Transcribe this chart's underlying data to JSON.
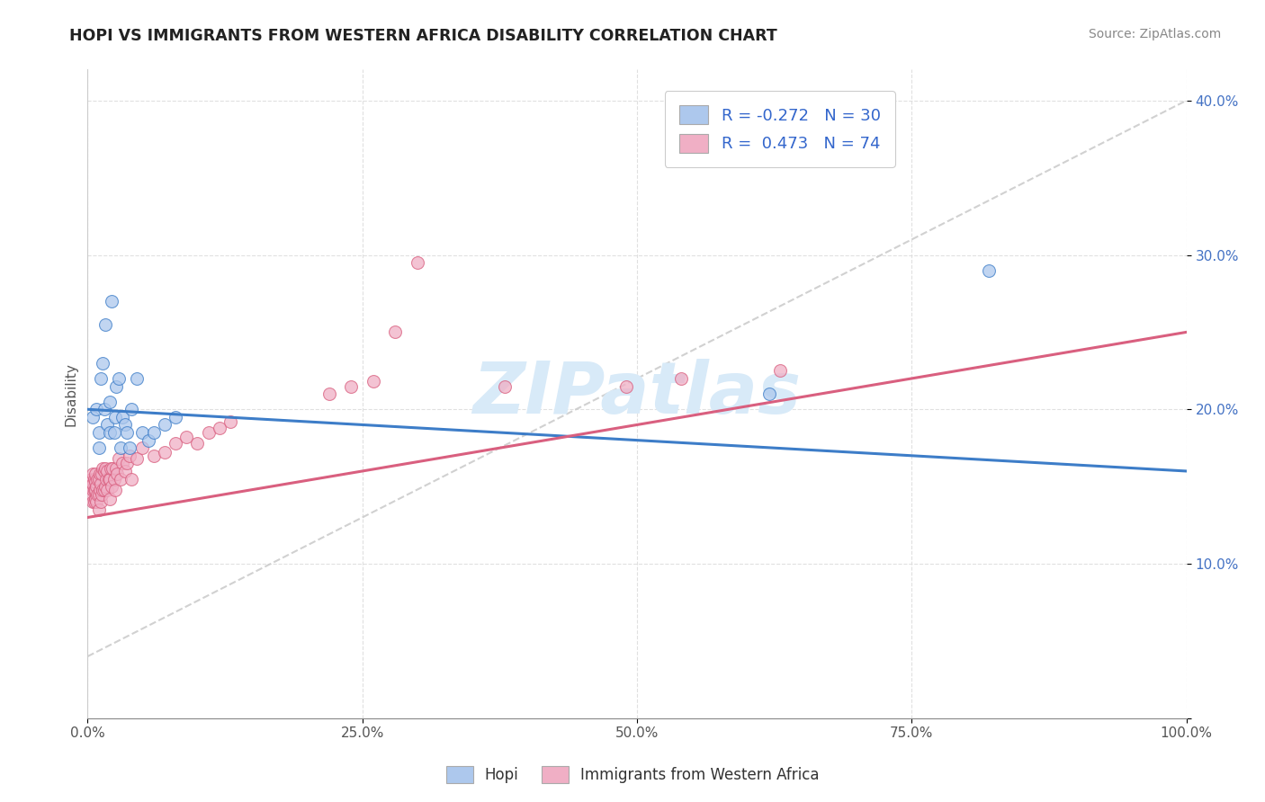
{
  "title": "HOPI VS IMMIGRANTS FROM WESTERN AFRICA DISABILITY CORRELATION CHART",
  "source_text": "Source: ZipAtlas.com",
  "ylabel": "Disability",
  "xlim": [
    0,
    1.0
  ],
  "ylim": [
    0,
    0.42
  ],
  "xticks": [
    0.0,
    0.25,
    0.5,
    0.75,
    1.0
  ],
  "xtick_labels": [
    "0.0%",
    "25.0%",
    "50.0%",
    "75.0%",
    "100.0%"
  ],
  "yticks": [
    0.0,
    0.1,
    0.2,
    0.3,
    0.4
  ],
  "ytick_labels": [
    "",
    "10.0%",
    "20.0%",
    "30.0%",
    "40.0%"
  ],
  "hopi_R": -0.272,
  "hopi_N": 30,
  "immigrants_R": 0.473,
  "immigrants_N": 74,
  "hopi_color": "#adc8ed",
  "immigrants_color": "#f0afc5",
  "hopi_line_color": "#3d7dc8",
  "immigrants_line_color": "#d95f7f",
  "ref_line_color": "#cccccc",
  "watermark_color": "#d8eaf8",
  "legend_label_hopi": "Hopi",
  "legend_label_immigrants": "Immigrants from Western Africa",
  "hopi_x": [
    0.005,
    0.008,
    0.01,
    0.01,
    0.012,
    0.014,
    0.015,
    0.016,
    0.018,
    0.02,
    0.02,
    0.022,
    0.024,
    0.025,
    0.026,
    0.028,
    0.03,
    0.032,
    0.034,
    0.036,
    0.038,
    0.04,
    0.045,
    0.05,
    0.055,
    0.06,
    0.07,
    0.08,
    0.62,
    0.82
  ],
  "hopi_y": [
    0.195,
    0.2,
    0.175,
    0.185,
    0.22,
    0.23,
    0.2,
    0.255,
    0.19,
    0.205,
    0.185,
    0.27,
    0.185,
    0.195,
    0.215,
    0.22,
    0.175,
    0.195,
    0.19,
    0.185,
    0.175,
    0.2,
    0.22,
    0.185,
    0.18,
    0.185,
    0.19,
    0.195,
    0.21,
    0.29
  ],
  "immigrants_x": [
    0.003,
    0.003,
    0.004,
    0.004,
    0.004,
    0.005,
    0.005,
    0.005,
    0.005,
    0.006,
    0.006,
    0.006,
    0.007,
    0.007,
    0.007,
    0.007,
    0.008,
    0.008,
    0.009,
    0.009,
    0.01,
    0.01,
    0.01,
    0.011,
    0.011,
    0.012,
    0.012,
    0.013,
    0.013,
    0.014,
    0.014,
    0.015,
    0.015,
    0.016,
    0.016,
    0.017,
    0.018,
    0.018,
    0.019,
    0.02,
    0.02,
    0.021,
    0.022,
    0.023,
    0.024,
    0.025,
    0.026,
    0.027,
    0.028,
    0.03,
    0.032,
    0.034,
    0.036,
    0.038,
    0.04,
    0.045,
    0.05,
    0.06,
    0.07,
    0.08,
    0.09,
    0.1,
    0.11,
    0.12,
    0.13,
    0.22,
    0.24,
    0.26,
    0.28,
    0.3,
    0.38,
    0.49,
    0.54,
    0.63
  ],
  "immigrants_y": [
    0.155,
    0.15,
    0.145,
    0.15,
    0.155,
    0.14,
    0.148,
    0.152,
    0.158,
    0.14,
    0.148,
    0.155,
    0.142,
    0.148,
    0.153,
    0.158,
    0.14,
    0.15,
    0.145,
    0.155,
    0.135,
    0.145,
    0.155,
    0.148,
    0.158,
    0.14,
    0.152,
    0.145,
    0.158,
    0.148,
    0.162,
    0.148,
    0.16,
    0.15,
    0.162,
    0.155,
    0.148,
    0.16,
    0.155,
    0.142,
    0.155,
    0.162,
    0.15,
    0.162,
    0.155,
    0.148,
    0.162,
    0.158,
    0.168,
    0.155,
    0.165,
    0.16,
    0.165,
    0.17,
    0.155,
    0.168,
    0.175,
    0.17,
    0.172,
    0.178,
    0.182,
    0.178,
    0.185,
    0.188,
    0.192,
    0.21,
    0.215,
    0.218,
    0.25,
    0.295,
    0.215,
    0.215,
    0.22,
    0.225
  ],
  "hopi_trend_x0": 0.0,
  "hopi_trend_y0": 0.2,
  "hopi_trend_x1": 1.0,
  "hopi_trend_y1": 0.16,
  "imm_trend_x0": 0.0,
  "imm_trend_y0": 0.13,
  "imm_trend_x1": 1.0,
  "imm_trend_y1": 0.25
}
